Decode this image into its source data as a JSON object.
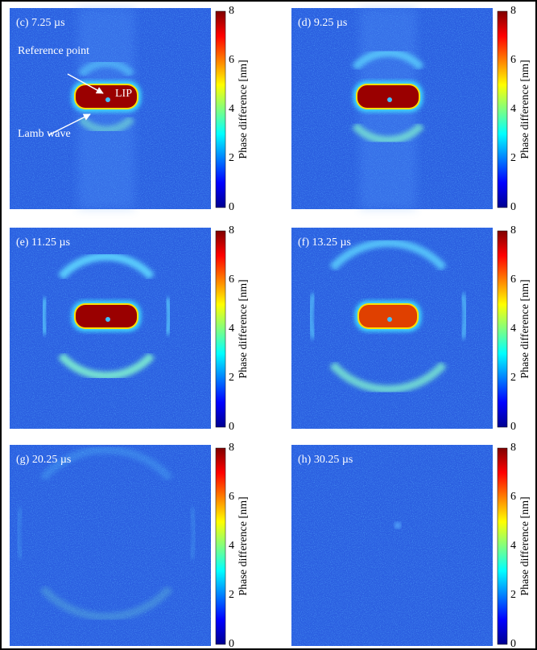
{
  "panels": [
    {
      "label": "(c) 7.25 µs",
      "annotations": [
        "Reference point",
        "LIP",
        "Lamb wave"
      ]
    },
    {
      "label": "(d) 9.25 µs"
    },
    {
      "label": "(e) 11.25 µs"
    },
    {
      "label": "(f) 13.25 µs"
    },
    {
      "label": "(g) 20.25 µs"
    },
    {
      "label": "(h) 30.25 µs"
    }
  ],
  "colorbar": {
    "label": "Phase difference  [nm]",
    "ticks": [
      "0",
      "2",
      "4",
      "6",
      "8"
    ]
  }
}
